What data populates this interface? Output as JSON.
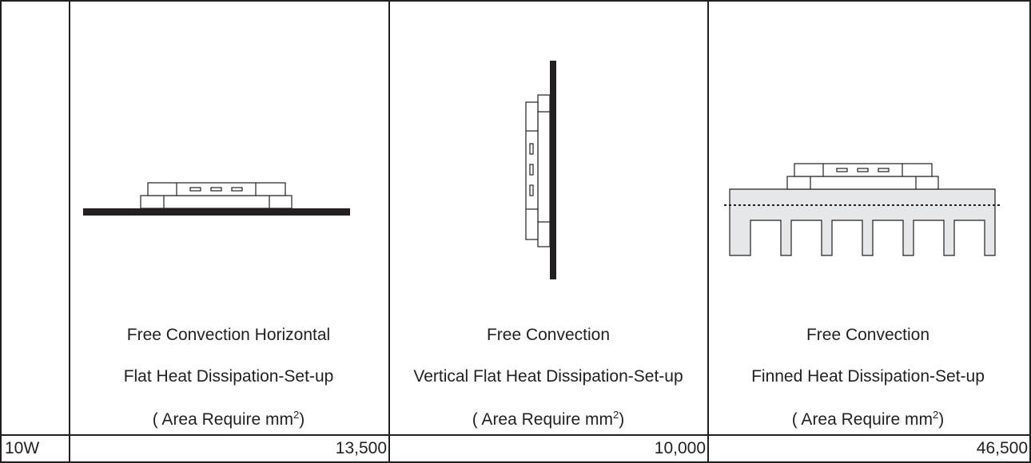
{
  "columns": [
    {
      "caption_line1": "Free Convection Horizontal",
      "caption_line2": "Flat Heat Dissipation-Set-up",
      "caption_line3": "( Area Require mm",
      "caption_sup": "2",
      "caption_close": ")",
      "value": "13,500"
    },
    {
      "caption_line1": "Free Convection",
      "caption_line2": "Vertical Flat Heat Dissipation-Set-up",
      "caption_line3": "( Area Require mm",
      "caption_sup": "2",
      "caption_close": ")",
      "value": "10,000"
    },
    {
      "caption_line1": "Free Convection",
      "caption_line2": "Finned Heat Dissipation-Set-up",
      "caption_line3": "( Area Require mm",
      "caption_sup": "2",
      "caption_close": ")",
      "value": "46,500"
    }
  ],
  "row_label": "10W",
  "colors": {
    "line": "#231f20",
    "heatsink_fill": "#e6e7e8"
  }
}
